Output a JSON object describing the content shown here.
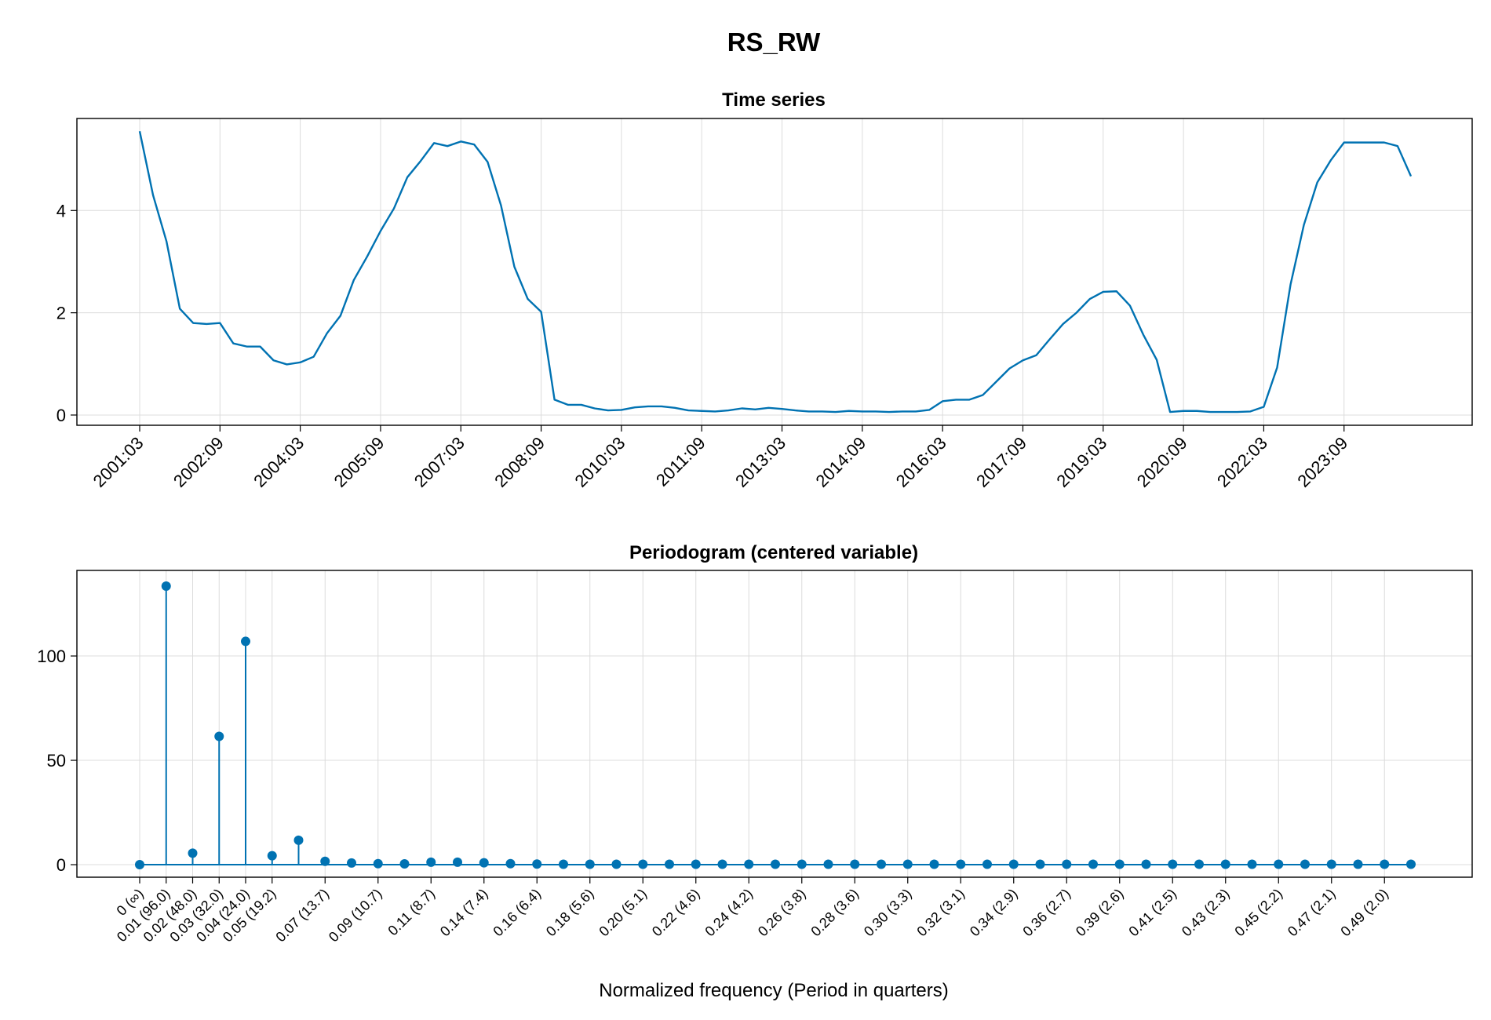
{
  "title": "RS_RW",
  "chart_data": [
    {
      "type": "line",
      "title": "Time series",
      "xlabel": "",
      "ylabel": "",
      "ylim": [
        -0.2,
        5.8
      ],
      "yticks": [
        0,
        2,
        4
      ],
      "xtick_labels": [
        "2001:03",
        "2002:09",
        "2004:03",
        "2005:09",
        "2007:03",
        "2008:09",
        "2010:03",
        "2011:09",
        "2013:03",
        "2014:09",
        "2016:03",
        "2017:09",
        "2019:03",
        "2020:09",
        "2022:03",
        "2023:09"
      ],
      "grid": true,
      "color": "#0072b2",
      "x_start": "2001:03",
      "frequency": "quarterly",
      "values": [
        5.55,
        4.3,
        3.4,
        2.08,
        1.8,
        1.78,
        1.8,
        1.4,
        1.34,
        1.34,
        1.07,
        0.99,
        1.03,
        1.14,
        1.6,
        1.94,
        2.64,
        3.1,
        3.6,
        4.04,
        4.65,
        4.97,
        5.32,
        5.26,
        5.35,
        5.29,
        4.95,
        4.1,
        2.9,
        2.27,
        2.02,
        0.3,
        0.2,
        0.2,
        0.13,
        0.09,
        0.1,
        0.15,
        0.17,
        0.17,
        0.14,
        0.09,
        0.08,
        0.07,
        0.09,
        0.13,
        0.11,
        0.14,
        0.12,
        0.09,
        0.07,
        0.07,
        0.06,
        0.08,
        0.07,
        0.07,
        0.06,
        0.07,
        0.07,
        0.1,
        0.27,
        0.3,
        0.3,
        0.39,
        0.65,
        0.91,
        1.07,
        1.17,
        1.48,
        1.78,
        2.0,
        2.27,
        2.41,
        2.42,
        2.14,
        1.57,
        1.08,
        0.06,
        0.08,
        0.08,
        0.06,
        0.06,
        0.06,
        0.07,
        0.16,
        0.93,
        2.55,
        3.72,
        4.55,
        4.98,
        5.33,
        5.33,
        5.33,
        5.33,
        5.26,
        4.67
      ]
    },
    {
      "type": "stem",
      "title": "Periodogram (centered variable)",
      "xlabel": "Normalized frequency (Period in quarters)",
      "ylabel": "",
      "ylim": [
        -6,
        141
      ],
      "yticks": [
        0,
        50,
        100
      ],
      "grid": true,
      "color": "#0072b2",
      "x_count": 49,
      "tick_labels": [
        "0 (∞)",
        "0.01 (96.0)",
        "0.02 (48.0)",
        "0.03 (32.0)",
        "0.04 (24.0)",
        "0.05 (19.2)",
        "0.07 (13.7)",
        "0.09 (10.7)",
        "0.11 (8.7)",
        "0.14 (7.4)",
        "0.16 (6.4)",
        "0.18 (5.6)",
        "0.20 (5.1)",
        "0.22 (4.6)",
        "0.24 (4.2)",
        "0.26 (3.8)",
        "0.28 (3.6)",
        "0.30 (3.3)",
        "0.32 (3.1)",
        "0.34 (2.9)",
        "0.36 (2.7)",
        "0.39 (2.6)",
        "0.41 (2.5)",
        "0.43 (2.3)",
        "0.45 (2.2)",
        "0.47 (2.1)",
        "0.49 (2.0)"
      ],
      "tick_indices": [
        0,
        1,
        2,
        3,
        4,
        5,
        7,
        9,
        11,
        13,
        15,
        17,
        19,
        21,
        23,
        25,
        27,
        29,
        31,
        33,
        35,
        37,
        39,
        41,
        43,
        45,
        47
      ],
      "values": [
        0,
        133.5,
        5.5,
        61.5,
        107,
        4.3,
        11.7,
        1.6,
        0.8,
        0.5,
        0.4,
        1.2,
        1.2,
        0.9,
        0.5,
        0.3,
        0.2,
        0.2,
        0.2,
        0.2,
        0.2,
        0.2,
        0.2,
        0.2,
        0.2,
        0.2,
        0.2,
        0.2,
        0.2,
        0.2,
        0.2,
        0.2,
        0.2,
        0.2,
        0.2,
        0.2,
        0.2,
        0.2,
        0.2,
        0.2,
        0.2,
        0.2,
        0.2,
        0.2,
        0.2,
        0.2,
        0.2,
        0.2,
        0.2
      ]
    }
  ]
}
